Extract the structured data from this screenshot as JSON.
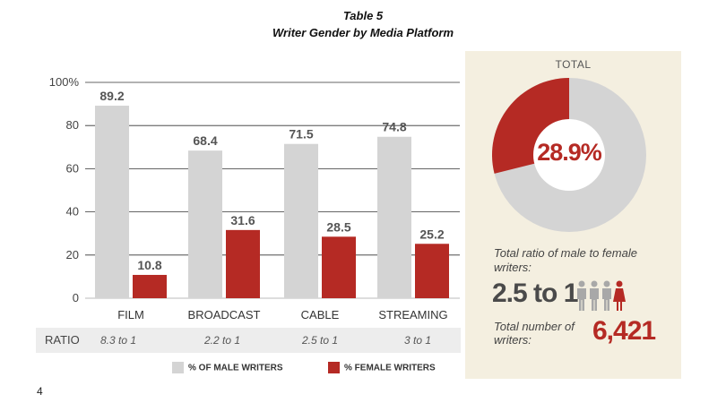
{
  "title": {
    "line1": "Table 5",
    "line2": "Writer Gender by Media Platform"
  },
  "chart_data": {
    "type": "bar",
    "title": "Writer Gender by Media Platform",
    "categories": [
      "FILM",
      "BROADCAST",
      "CABLE",
      "STREAMING"
    ],
    "series": [
      {
        "name": "% OF MALE WRITERS",
        "values": [
          89.2,
          68.4,
          71.5,
          74.8
        ],
        "color": "#d4d4d4"
      },
      {
        "name": "% FEMALE WRITERS",
        "values": [
          10.8,
          31.6,
          28.5,
          25.2
        ],
        "color": "#b52a24"
      }
    ],
    "data_labels": {
      "male": [
        "89.2",
        "68.4",
        "71.5",
        "74.8"
      ],
      "female": [
        "10.8",
        "31.6",
        "28.5",
        "25.2"
      ]
    },
    "y_ticks": [
      "0",
      "20",
      "40",
      "60",
      "80",
      "100%"
    ],
    "ylim": [
      0,
      100
    ],
    "grid": true,
    "legend_position": "bottom"
  },
  "ratio_row": {
    "label": "RATIO",
    "values": [
      "8.3 to 1",
      "2.2 to 1",
      "2.5 to 1",
      "3 to 1"
    ]
  },
  "side_panel": {
    "total_label": "TOTAL",
    "donut": {
      "female_percent": 28.9,
      "label": "28.9%"
    },
    "ratio_caption": "Total ratio of male to female writers:",
    "ratio_value": "2.5 to 1",
    "count_caption": "Total number of writers:",
    "count_value": "6,421"
  },
  "colors": {
    "male": "#d4d4d4",
    "female": "#b52a24",
    "panel_bg": "#f4efe0"
  },
  "page_number": "4"
}
